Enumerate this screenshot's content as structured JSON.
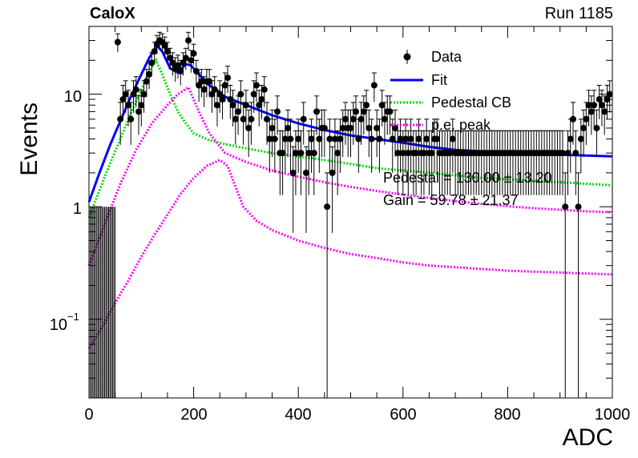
{
  "header": {
    "left": "CaloX",
    "right": "Run 1185"
  },
  "axes": {
    "xlabel": "ADC",
    "ylabel": "Events",
    "xticks": [
      "0",
      "200",
      "400",
      "600",
      "800",
      "1000"
    ],
    "yticks": {
      "one": "1",
      "ten": "10",
      "tenth_base": "10",
      "tenth_exp": "−1"
    }
  },
  "legend": {
    "data": "Data",
    "fit": "Fit",
    "ped": "Pedestal CB",
    "pe": "p.e. peak"
  },
  "annotations": {
    "pedestal": "Pedestal = 130.00 ± 13.20",
    "gain": "Gain = 59.78 ± 21.37"
  },
  "colors": {
    "data": "#000000",
    "fit": "#0000ff",
    "ped": "#00dd00",
    "pe": "#ff00ff"
  },
  "chart_data": {
    "type": "scatter",
    "title": "",
    "xlabel": "ADC",
    "ylabel": "Events",
    "xlim": [
      0,
      1000
    ],
    "ylim": [
      0.02,
      40
    ],
    "log_y": true,
    "legend_position": "top-right",
    "series": [
      {
        "name": "Data",
        "kind": "points_with_errors",
        "points": [
          [
            55,
            29
          ],
          [
            60,
            6
          ],
          [
            65,
            9
          ],
          [
            70,
            10
          ],
          [
            75,
            8
          ],
          [
            80,
            6
          ],
          [
            85,
            10
          ],
          [
            90,
            11
          ],
          [
            95,
            7
          ],
          [
            100,
            8
          ],
          [
            105,
            10
          ],
          [
            110,
            13
          ],
          [
            115,
            15
          ],
          [
            120,
            19
          ],
          [
            125,
            24
          ],
          [
            130,
            28
          ],
          [
            135,
            30
          ],
          [
            140,
            29
          ],
          [
            145,
            27
          ],
          [
            150,
            24
          ],
          [
            155,
            21
          ],
          [
            160,
            19
          ],
          [
            165,
            17
          ],
          [
            170,
            18
          ],
          [
            175,
            16
          ],
          [
            180,
            19
          ],
          [
            185,
            21
          ],
          [
            190,
            30
          ],
          [
            195,
            20
          ],
          [
            200,
            23
          ],
          [
            205,
            16
          ],
          [
            210,
            12
          ],
          [
            215,
            13
          ],
          [
            220,
            11
          ],
          [
            225,
            13
          ],
          [
            230,
            13
          ],
          [
            235,
            10
          ],
          [
            240,
            11
          ],
          [
            245,
            8
          ],
          [
            250,
            10
          ],
          [
            255,
            9
          ],
          [
            260,
            12
          ],
          [
            265,
            14
          ],
          [
            270,
            9
          ],
          [
            275,
            8
          ],
          [
            280,
            6
          ],
          [
            285,
            7
          ],
          [
            290,
            10
          ],
          [
            295,
            6
          ],
          [
            300,
            8
          ],
          [
            305,
            5
          ],
          [
            310,
            6
          ],
          [
            315,
            10
          ],
          [
            320,
            12
          ],
          [
            325,
            8
          ],
          [
            330,
            9
          ],
          [
            335,
            11
          ],
          [
            340,
            6
          ],
          [
            345,
            4
          ],
          [
            350,
            5
          ],
          [
            355,
            4
          ],
          [
            360,
            7
          ],
          [
            365,
            3
          ],
          [
            370,
            3
          ],
          [
            375,
            4
          ],
          [
            380,
            5
          ],
          [
            385,
            4
          ],
          [
            390,
            2
          ],
          [
            395,
            3
          ],
          [
            400,
            4
          ],
          [
            405,
            3
          ],
          [
            410,
            6
          ],
          [
            415,
            2
          ],
          [
            420,
            3
          ],
          [
            425,
            4
          ],
          [
            430,
            3
          ],
          [
            435,
            7
          ],
          [
            440,
            4
          ],
          [
            445,
            5
          ],
          [
            450,
            5
          ],
          [
            455,
            1
          ],
          [
            460,
            4
          ],
          [
            465,
            2
          ],
          [
            470,
            4
          ],
          [
            475,
            3
          ],
          [
            480,
            4
          ],
          [
            485,
            5
          ],
          [
            490,
            6
          ],
          [
            495,
            5
          ],
          [
            500,
            5
          ],
          [
            505,
            6
          ],
          [
            510,
            7
          ],
          [
            515,
            4
          ],
          [
            520,
            6
          ],
          [
            525,
            7
          ],
          [
            530,
            8
          ],
          [
            535,
            5
          ],
          [
            540,
            4
          ],
          [
            545,
            12
          ],
          [
            550,
            5
          ],
          [
            555,
            4
          ],
          [
            560,
            8
          ],
          [
            565,
            6
          ],
          [
            570,
            7
          ],
          [
            575,
            7
          ],
          [
            580,
            4
          ],
          [
            585,
            5
          ],
          [
            590,
            3
          ],
          [
            595,
            4
          ],
          [
            600,
            3
          ],
          [
            605,
            4
          ],
          [
            610,
            3
          ],
          [
            615,
            4
          ],
          [
            620,
            3
          ],
          [
            625,
            3
          ],
          [
            630,
            4
          ],
          [
            635,
            3
          ],
          [
            640,
            3
          ],
          [
            645,
            4
          ],
          [
            650,
            3
          ],
          [
            655,
            3
          ],
          [
            660,
            4
          ],
          [
            665,
            4
          ],
          [
            670,
            3
          ],
          [
            675,
            3
          ],
          [
            680,
            3
          ],
          [
            685,
            3
          ],
          [
            690,
            3
          ],
          [
            695,
            4
          ],
          [
            700,
            3
          ],
          [
            705,
            3
          ],
          [
            710,
            3
          ],
          [
            715,
            3
          ],
          [
            720,
            3
          ],
          [
            725,
            3
          ],
          [
            730,
            3
          ],
          [
            735,
            3
          ],
          [
            740,
            3
          ],
          [
            745,
            3
          ],
          [
            750,
            3
          ],
          [
            755,
            3
          ],
          [
            760,
            3
          ],
          [
            765,
            3
          ],
          [
            770,
            3
          ],
          [
            775,
            3
          ],
          [
            780,
            3
          ],
          [
            785,
            3
          ],
          [
            790,
            3
          ],
          [
            795,
            3
          ],
          [
            800,
            3
          ],
          [
            805,
            3
          ],
          [
            810,
            3
          ],
          [
            815,
            3
          ],
          [
            820,
            3
          ],
          [
            825,
            3
          ],
          [
            830,
            3
          ],
          [
            835,
            3
          ],
          [
            840,
            3
          ],
          [
            845,
            3
          ],
          [
            850,
            3
          ],
          [
            855,
            3
          ],
          [
            860,
            3
          ],
          [
            865,
            3
          ],
          [
            870,
            3
          ],
          [
            875,
            3
          ],
          [
            880,
            3
          ],
          [
            885,
            3
          ],
          [
            890,
            3
          ],
          [
            895,
            3
          ],
          [
            900,
            3
          ],
          [
            905,
            3
          ],
          [
            910,
            1
          ],
          [
            915,
            3
          ],
          [
            920,
            4
          ],
          [
            925,
            6
          ],
          [
            930,
            3
          ],
          [
            935,
            1
          ],
          [
            940,
            4
          ],
          [
            945,
            5
          ],
          [
            950,
            6
          ],
          [
            955,
            8
          ],
          [
            960,
            7
          ],
          [
            965,
            8
          ],
          [
            970,
            5
          ],
          [
            975,
            9
          ],
          [
            980,
            8
          ],
          [
            985,
            7
          ],
          [
            990,
            9
          ],
          [
            995,
            10
          ]
        ]
      },
      {
        "name": "Fit",
        "kind": "line",
        "points": [
          [
            0,
            1.1
          ],
          [
            20,
            2
          ],
          [
            40,
            3.5
          ],
          [
            60,
            5.8
          ],
          [
            80,
            9.5
          ],
          [
            100,
            15
          ],
          [
            115,
            21
          ],
          [
            130,
            27
          ],
          [
            140,
            24
          ],
          [
            155,
            17
          ],
          [
            170,
            15.5
          ],
          [
            185,
            18.5
          ],
          [
            195,
            18
          ],
          [
            210,
            15
          ],
          [
            230,
            12
          ],
          [
            260,
            9.5
          ],
          [
            300,
            8
          ],
          [
            350,
            6.5
          ],
          [
            400,
            5.5
          ],
          [
            450,
            4.8
          ],
          [
            500,
            4.3
          ],
          [
            550,
            4
          ],
          [
            600,
            3.7
          ],
          [
            650,
            3.4
          ],
          [
            700,
            3.2
          ],
          [
            750,
            3.1
          ],
          [
            800,
            3
          ],
          [
            850,
            2.95
          ],
          [
            900,
            2.9
          ],
          [
            950,
            2.85
          ],
          [
            1000,
            2.8
          ]
        ]
      },
      {
        "name": "Pedestal CB",
        "kind": "dotted",
        "points": [
          [
            0,
            0.8
          ],
          [
            20,
            1.4
          ],
          [
            40,
            2.4
          ],
          [
            60,
            4
          ],
          [
            80,
            6.8
          ],
          [
            100,
            11
          ],
          [
            115,
            16
          ],
          [
            128,
            20
          ],
          [
            140,
            15
          ],
          [
            155,
            10
          ],
          [
            170,
            7
          ],
          [
            185,
            5.5
          ],
          [
            200,
            4.5
          ],
          [
            230,
            3.9
          ],
          [
            260,
            3.6
          ],
          [
            300,
            3.3
          ],
          [
            350,
            3
          ],
          [
            400,
            2.8
          ],
          [
            450,
            2.6
          ],
          [
            500,
            2.4
          ],
          [
            550,
            2.2
          ],
          [
            600,
            2.1
          ],
          [
            650,
            2
          ],
          [
            700,
            1.9
          ],
          [
            750,
            1.8
          ],
          [
            800,
            1.75
          ],
          [
            850,
            1.7
          ],
          [
            900,
            1.65
          ],
          [
            950,
            1.6
          ],
          [
            1000,
            1.55
          ]
        ]
      },
      {
        "name": "p.e. peak",
        "kind": "dotted",
        "points": [
          [
            0,
            0.3
          ],
          [
            30,
            0.7
          ],
          [
            60,
            1.6
          ],
          [
            90,
            3.2
          ],
          [
            120,
            5.5
          ],
          [
            150,
            8
          ],
          [
            170,
            10
          ],
          [
            190,
            11.5
          ],
          [
            210,
            7
          ],
          [
            230,
            4.5
          ],
          [
            260,
            3
          ],
          [
            300,
            2.5
          ],
          [
            350,
            2.1
          ],
          [
            400,
            1.85
          ],
          [
            450,
            1.65
          ],
          [
            500,
            1.5
          ],
          [
            550,
            1.38
          ],
          [
            600,
            1.28
          ],
          [
            650,
            1.2
          ],
          [
            700,
            1.12
          ],
          [
            750,
            1.06
          ],
          [
            800,
            1.01
          ],
          [
            850,
            0.97
          ],
          [
            900,
            0.94
          ],
          [
            950,
            0.91
          ],
          [
            1000,
            0.89
          ]
        ]
      },
      {
        "name": "p.e. peak",
        "kind": "dotted",
        "points": [
          [
            0,
            0.055
          ],
          [
            25,
            0.085
          ],
          [
            50,
            0.14
          ],
          [
            75,
            0.22
          ],
          [
            100,
            0.36
          ],
          [
            125,
            0.56
          ],
          [
            150,
            0.85
          ],
          [
            175,
            1.3
          ],
          [
            200,
            1.8
          ],
          [
            225,
            2.3
          ],
          [
            250,
            2.6
          ],
          [
            265,
            2.3
          ],
          [
            280,
            1.5
          ],
          [
            295,
            1
          ],
          [
            320,
            0.75
          ],
          [
            350,
            0.62
          ],
          [
            400,
            0.5
          ],
          [
            450,
            0.43
          ],
          [
            500,
            0.38
          ],
          [
            550,
            0.35
          ],
          [
            600,
            0.32
          ],
          [
            650,
            0.3
          ],
          [
            700,
            0.29
          ],
          [
            750,
            0.28
          ],
          [
            800,
            0.27
          ],
          [
            850,
            0.265
          ],
          [
            900,
            0.26
          ],
          [
            950,
            0.255
          ],
          [
            1000,
            0.25
          ]
        ]
      }
    ]
  }
}
